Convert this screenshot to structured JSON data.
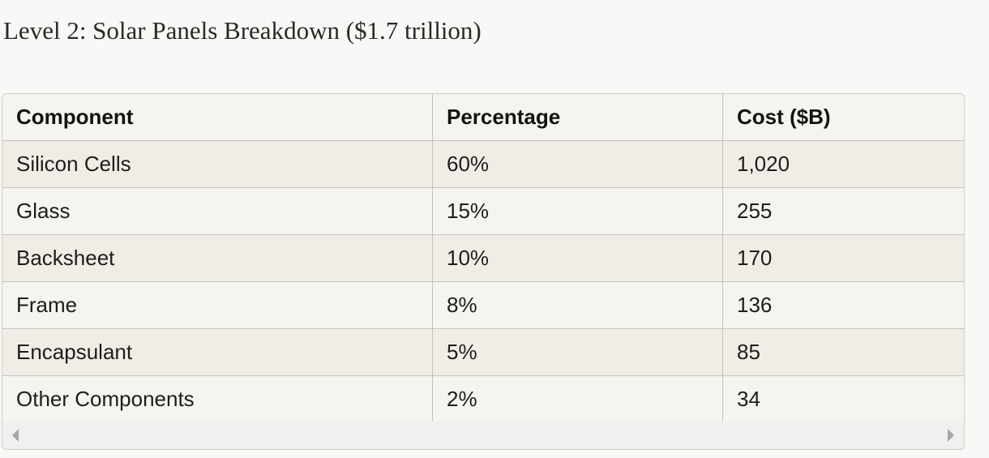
{
  "heading": "Level 2: Solar Panels Breakdown ($1.7 trillion)",
  "table": {
    "headers": [
      "Component",
      "Percentage",
      "Cost ($B)"
    ],
    "rows": [
      [
        "Silicon Cells",
        "60%",
        "1,020"
      ],
      [
        "Glass",
        "15%",
        "255"
      ],
      [
        "Backsheet",
        "10%",
        "170"
      ],
      [
        "Frame",
        "8%",
        "136"
      ],
      [
        "Encapsulant",
        "5%",
        "85"
      ],
      [
        "Other Components",
        "2%",
        "34"
      ]
    ]
  },
  "scrollbar": {
    "left_icon": "triangle-left-icon",
    "right_icon": "triangle-right-icon"
  }
}
